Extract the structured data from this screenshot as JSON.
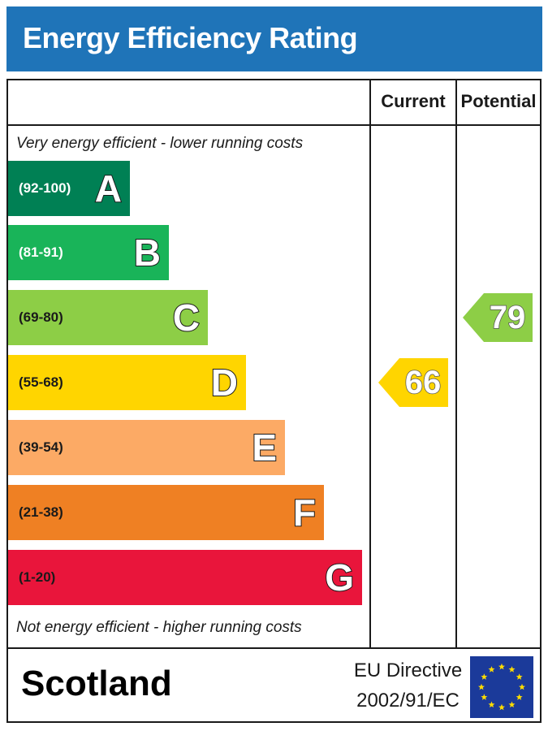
{
  "title": "Energy Efficiency Rating",
  "columns": {
    "current": "Current",
    "potential": "Potential"
  },
  "captions": {
    "top": "Very energy efficient - lower running costs",
    "bottom": "Not energy efficient - higher running costs"
  },
  "colors": {
    "header": "#1f74b8",
    "A": "#008054",
    "B": "#19b459",
    "C": "#8dce46",
    "D": "#ffd500",
    "E": "#fcaa65",
    "F": "#ef8023",
    "G": "#e9153b",
    "flag": "#1b3a9a",
    "stars": "#ffdd00"
  },
  "chart_data": {
    "type": "bar",
    "title": "Energy Efficiency Rating",
    "categories": [
      "A",
      "B",
      "C",
      "D",
      "E",
      "F",
      "G"
    ],
    "bands": [
      {
        "letter": "A",
        "range": "(92-100)",
        "min": 92,
        "max": 100
      },
      {
        "letter": "B",
        "range": "(81-91)",
        "min": 81,
        "max": 91
      },
      {
        "letter": "C",
        "range": "(69-80)",
        "min": 69,
        "max": 80
      },
      {
        "letter": "D",
        "range": "(55-68)",
        "min": 55,
        "max": 68
      },
      {
        "letter": "E",
        "range": "(39-54)",
        "min": 39,
        "max": 54
      },
      {
        "letter": "F",
        "range": "(21-38)",
        "min": 21,
        "max": 38
      },
      {
        "letter": "G",
        "range": "(1-20)",
        "min": 1,
        "max": 20
      }
    ],
    "series": [
      {
        "name": "Current",
        "value": 66,
        "band": "D"
      },
      {
        "name": "Potential",
        "value": 79,
        "band": "C"
      }
    ]
  },
  "footer": {
    "region": "Scotland",
    "directive_line1": "EU Directive",
    "directive_line2": "2002/91/EC",
    "flag_icon": "eu-flag-icon"
  }
}
